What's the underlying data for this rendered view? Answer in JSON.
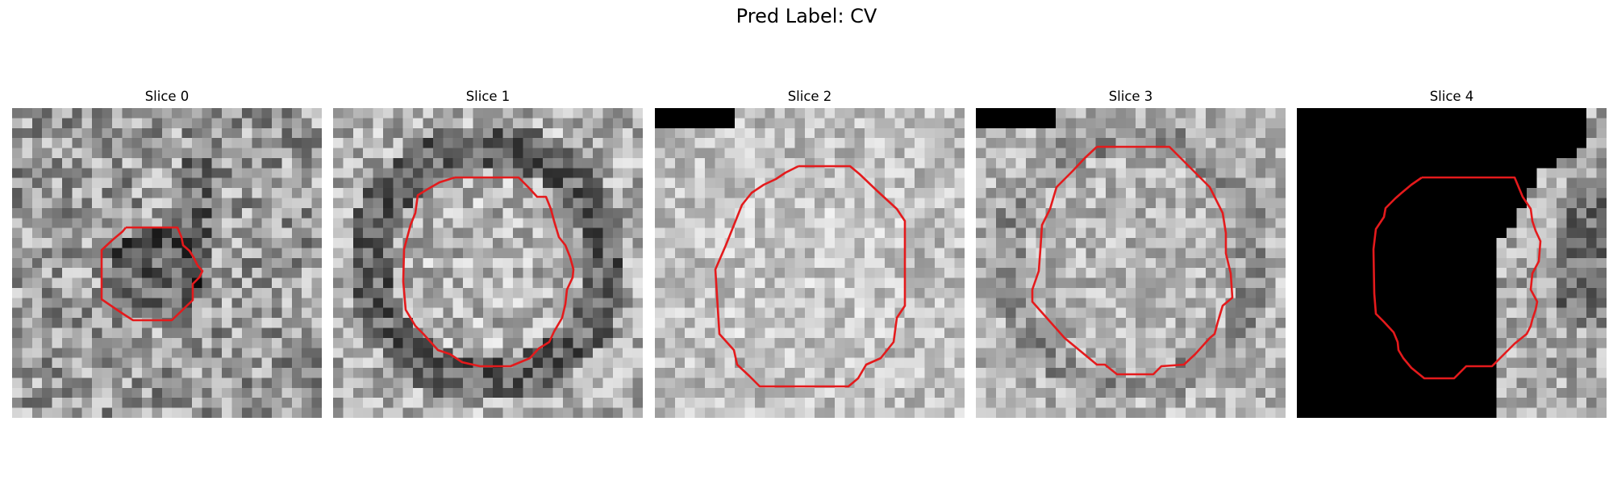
{
  "title": "Pred Label: CV",
  "colors": {
    "contour": "#e41a1c",
    "masked": "#000000"
  },
  "grid_size": 31,
  "panels": [
    {
      "label": "Slice 0",
      "seed": 11,
      "base": 155,
      "noise": 70,
      "ring": "blob",
      "masked": "none"
    },
    {
      "label": "Slice 1",
      "seed": 23,
      "base": 175,
      "noise": 60,
      "ring": "dark-ring",
      "masked": "none"
    },
    {
      "label": "Slice 2",
      "seed": 37,
      "base": 190,
      "noise": 45,
      "ring": "faint",
      "masked": "top-left-block"
    },
    {
      "label": "Slice 3",
      "seed": 53,
      "base": 180,
      "noise": 50,
      "ring": "faint-ring",
      "masked": "top-left-block"
    },
    {
      "label": "Slice 4",
      "seed": 71,
      "base": 170,
      "noise": 55,
      "ring": "edge",
      "masked": "left-region"
    }
  ]
}
